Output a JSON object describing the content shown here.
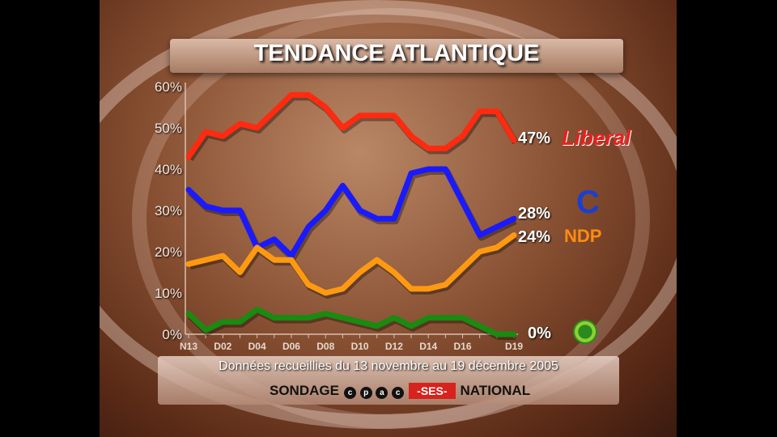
{
  "chart_data": {
    "type": "line",
    "title": "TENDANCE ATLANTIQUE",
    "xlabel": "",
    "ylabel": "",
    "ylim": [
      0,
      60
    ],
    "yticks": [
      "0%",
      "10%",
      "20%",
      "30%",
      "40%",
      "50%",
      "60%"
    ],
    "xtick_labels": [
      "N13",
      "D02",
      "D04",
      "D06",
      "D08",
      "D10",
      "D12",
      "D14",
      "D16",
      "D19"
    ],
    "xtick_positions": [
      0,
      2,
      4,
      6,
      8,
      10,
      12,
      14,
      16,
      19
    ],
    "points": 20,
    "series": [
      {
        "name": "Liberal",
        "color": "#ff2a10",
        "final_label": "47%",
        "values": [
          43,
          49,
          48,
          51,
          50,
          54,
          58,
          58,
          55,
          50,
          53,
          53,
          53,
          48,
          45,
          45,
          48,
          54,
          54,
          47
        ]
      },
      {
        "name": "Conservateur",
        "color": "#1a1aff",
        "final_label": "28%",
        "values": [
          35,
          31,
          30,
          30,
          21,
          23,
          19,
          26,
          30,
          36,
          30,
          28,
          28,
          39,
          40,
          40,
          32,
          24,
          26,
          28
        ]
      },
      {
        "name": "NDP",
        "color": "#ff9a10",
        "final_label": "24%",
        "values": [
          17,
          18,
          19,
          15,
          21,
          18,
          18,
          12,
          10,
          11,
          15,
          18,
          15,
          11,
          11,
          12,
          16,
          20,
          21,
          24
        ]
      },
      {
        "name": "Vert",
        "color": "#1a8a10",
        "final_label": "0%",
        "values": [
          5,
          1,
          3,
          3,
          6,
          4,
          4,
          4,
          5,
          4,
          3,
          2,
          4,
          2,
          4,
          4,
          4,
          2,
          0,
          0
        ]
      }
    ]
  },
  "logos": {
    "liberal": "Liberal",
    "ndp": "NDP",
    "conservative": "C"
  },
  "footer": {
    "source": "Données recueillies du 13 novembre au 19 décembre 2005",
    "sondage": "SONDAGE",
    "cpac": [
      "c",
      "p",
      "a",
      "c"
    ],
    "ses": "-SES-",
    "national": "NATIONAL"
  }
}
